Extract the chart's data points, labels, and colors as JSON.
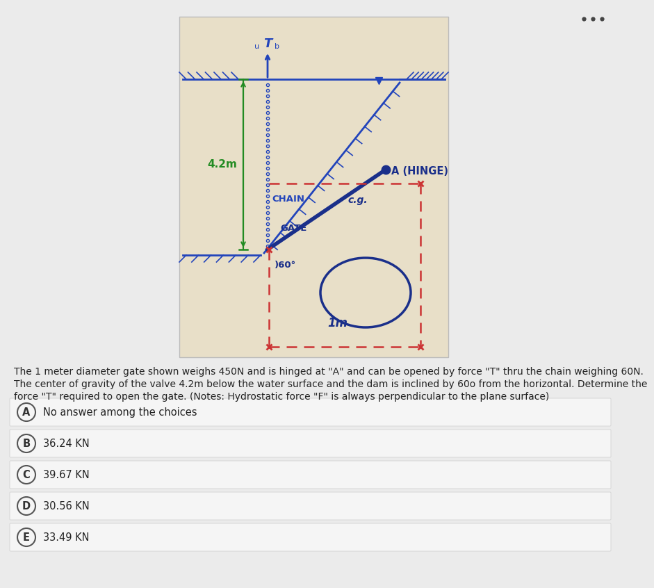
{
  "bg_color": "#ebebeb",
  "diagram_bg": "#e8dfc8",
  "water_color": "#2244bb",
  "gate_color": "#1a2f8a",
  "chain_color": "#2244bb",
  "dashed_color": "#cc3333",
  "green_color": "#228B22",
  "circle_color": "#1a2f8a",
  "dots_color": "#444444",
  "description_line1": "The 1 meter diameter gate shown weighs 450N and is hinged at \"A\" and can be opened by force \"T\" thru the chain weighing 60N.",
  "description_line2": "The center of gravity of the valve 4.2m below the water surface and the dam is inclined by 60o from the horizontal. Determine the",
  "description_line3": "force \"T\" required to open the gate. (Notes: Hydrostatic force \"F\" is always perpendicular to the plane surface)",
  "choices": [
    {
      "label": "A",
      "text": "No answer among the choices"
    },
    {
      "label": "B",
      "text": "36.24 KN"
    },
    {
      "label": "C",
      "text": "39.67 KN"
    },
    {
      "label": "D",
      "text": "30.56 KN"
    },
    {
      "label": "E",
      "text": "33.49 KN"
    }
  ]
}
